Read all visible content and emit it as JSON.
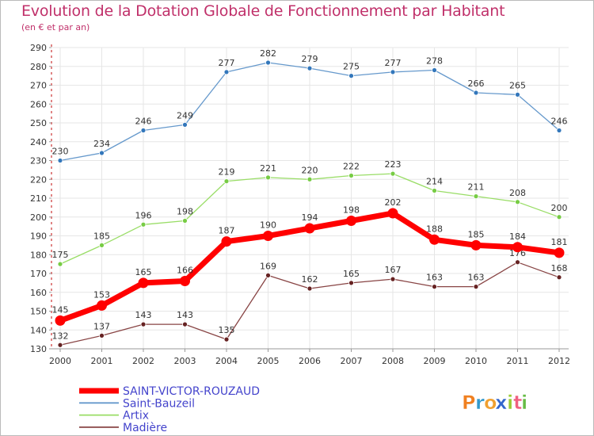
{
  "chart_data": {
    "type": "line",
    "title": "Evolution de la Dotation Globale de Fonctionnement par Habitant",
    "subtitle": "(en € et par an)",
    "xlabel": "",
    "ylabel": "",
    "x": [
      "2000",
      "2001",
      "2002",
      "2003",
      "2004",
      "2005",
      "2006",
      "2007",
      "2008",
      "2009",
      "2010",
      "2011",
      "2012"
    ],
    "ylim": [
      130,
      290
    ],
    "yticks": [
      130,
      140,
      150,
      160,
      170,
      180,
      190,
      200,
      210,
      220,
      230,
      240,
      250,
      260,
      270,
      280,
      290
    ],
    "grid": true,
    "legend_position": "bottom-left",
    "series": [
      {
        "name": "Saint-Bauzeil",
        "color": "#6699cc",
        "marker_color": "#3377bb",
        "values": [
          230,
          234,
          246,
          249,
          277,
          282,
          279,
          275,
          277,
          278,
          266,
          265,
          246
        ]
      },
      {
        "name": "Artix",
        "color": "#99dd66",
        "marker_color": "#77cc44",
        "values": [
          175,
          185,
          196,
          198,
          219,
          221,
          220,
          222,
          223,
          214,
          211,
          208,
          200
        ]
      },
      {
        "name": "Madière",
        "color": "#884444",
        "marker_color": "#662222",
        "values": [
          132,
          137,
          143,
          143,
          135,
          169,
          162,
          165,
          167,
          163,
          163,
          176,
          168
        ]
      },
      {
        "name": "SAINT-VICTOR-ROUZAUD",
        "color": "#ff0000",
        "marker_color": "#ff0000",
        "values": [
          145,
          153,
          165,
          166,
          187,
          190,
          194,
          198,
          202,
          188,
          185,
          184,
          181
        ]
      }
    ],
    "legend_order": [
      "SAINT-VICTOR-ROUZAUD",
      "Saint-Bauzeil",
      "Artix",
      "Madière"
    ],
    "legend_text_color": "#4444cc"
  },
  "brand": {
    "letters": [
      "P",
      "r",
      "o",
      "x",
      "i",
      "t",
      "i"
    ],
    "colors": [
      "#f08020",
      "#3399cc",
      "#f0a030",
      "#3366cc",
      "#99cc33",
      "#f06080",
      "#66bb44"
    ]
  }
}
